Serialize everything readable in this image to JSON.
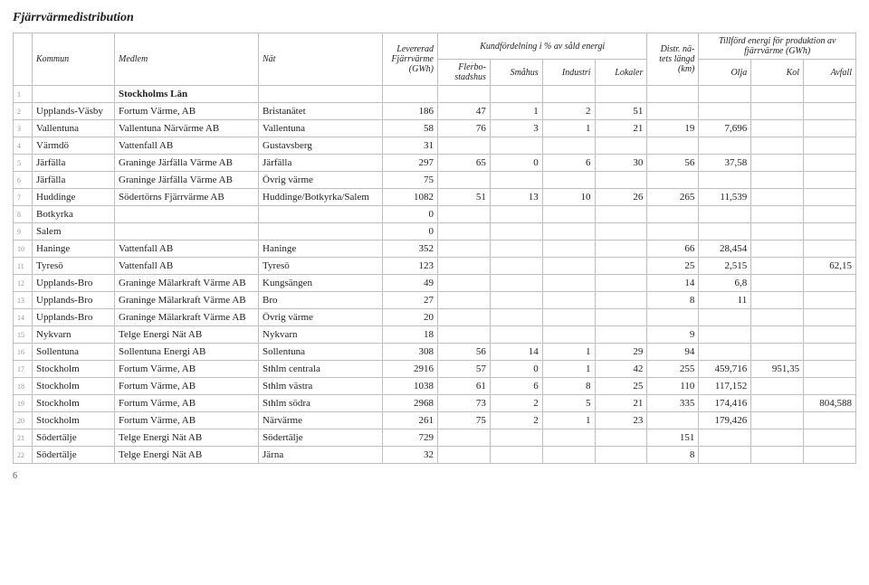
{
  "title": "Fjärrvärmedistribution",
  "group1": "Kundfördelning i % av såld energi",
  "group2": "Tillförd energi för produktion av fjärrvärme (GWh)",
  "cols": {
    "kommun": "Kommun",
    "medlem": "Medlem",
    "nat": "Nät",
    "lev": "Levererad Fjärrvärme (GWh)",
    "flerbo": "Flerbo-stadshus",
    "smahus": "Småhus",
    "industri": "Industri",
    "lokaler": "Lokaler",
    "distr": "Distr. nä-tets längd (km)",
    "olja": "Olja",
    "kol": "Kol",
    "avfall": "Avfall"
  },
  "regionRow": {
    "n": "1",
    "region": "Stockholms Län"
  },
  "rows": [
    {
      "n": "2",
      "kommun": "Upplands-Väsby",
      "medlem": "Fortum Värme, AB",
      "nat": "Bristanätet",
      "lev": "186",
      "flb": "47",
      "sma": "1",
      "ind": "2",
      "lok": "51",
      "dis": "",
      "olj": "",
      "kol": "",
      "avf": ""
    },
    {
      "n": "3",
      "kommun": "Vallentuna",
      "medlem": "Vallentuna Närvärme AB",
      "nat": "Vallentuna",
      "lev": "58",
      "flb": "76",
      "sma": "3",
      "ind": "1",
      "lok": "21",
      "dis": "19",
      "olj": "7,696",
      "kol": "",
      "avf": ""
    },
    {
      "n": "4",
      "kommun": "Värmdö",
      "medlem": "Vattenfall AB",
      "nat": "Gustavsberg",
      "lev": "31",
      "flb": "",
      "sma": "",
      "ind": "",
      "lok": "",
      "dis": "",
      "olj": "",
      "kol": "",
      "avf": ""
    },
    {
      "n": "5",
      "kommun": "Järfälla",
      "medlem": "Graninge Järfälla Värme AB",
      "nat": "Järfälla",
      "lev": "297",
      "flb": "65",
      "sma": "0",
      "ind": "6",
      "lok": "30",
      "dis": "56",
      "olj": "37,58",
      "kol": "",
      "avf": ""
    },
    {
      "n": "6",
      "kommun": "Järfälla",
      "medlem": "Graninge Järfälla Värme AB",
      "nat": "Övrig värme",
      "lev": "75",
      "flb": "",
      "sma": "",
      "ind": "",
      "lok": "",
      "dis": "",
      "olj": "",
      "kol": "",
      "avf": ""
    },
    {
      "n": "7",
      "kommun": "Huddinge",
      "medlem": "Södertörns Fjärrvärme AB",
      "nat": "Huddinge/Botkyrka/Salem",
      "lev": "1082",
      "flb": "51",
      "sma": "13",
      "ind": "10",
      "lok": "26",
      "dis": "265",
      "olj": "11,539",
      "kol": "",
      "avf": ""
    },
    {
      "n": "8",
      "kommun": "Botkyrka",
      "medlem": "",
      "nat": "",
      "lev": "0",
      "flb": "",
      "sma": "",
      "ind": "",
      "lok": "",
      "dis": "",
      "olj": "",
      "kol": "",
      "avf": ""
    },
    {
      "n": "9",
      "kommun": "Salem",
      "medlem": "",
      "nat": "",
      "lev": "0",
      "flb": "",
      "sma": "",
      "ind": "",
      "lok": "",
      "dis": "",
      "olj": "",
      "kol": "",
      "avf": ""
    },
    {
      "n": "10",
      "kommun": "Haninge",
      "medlem": "Vattenfall AB",
      "nat": "Haninge",
      "lev": "352",
      "flb": "",
      "sma": "",
      "ind": "",
      "lok": "",
      "dis": "66",
      "olj": "28,454",
      "kol": "",
      "avf": ""
    },
    {
      "n": "11",
      "kommun": "Tyresö",
      "medlem": "Vattenfall AB",
      "nat": "Tyresö",
      "lev": "123",
      "flb": "",
      "sma": "",
      "ind": "",
      "lok": "",
      "dis": "25",
      "olj": "2,515",
      "kol": "",
      "avf": "62,15"
    },
    {
      "n": "12",
      "kommun": "Upplands-Bro",
      "medlem": "Graninge Mälarkraft Värme AB",
      "nat": "Kungsängen",
      "lev": "49",
      "flb": "",
      "sma": "",
      "ind": "",
      "lok": "",
      "dis": "14",
      "olj": "6,8",
      "kol": "",
      "avf": ""
    },
    {
      "n": "13",
      "kommun": "Upplands-Bro",
      "medlem": "Graninge Mälarkraft Värme AB",
      "nat": "Bro",
      "lev": "27",
      "flb": "",
      "sma": "",
      "ind": "",
      "lok": "",
      "dis": "8",
      "olj": "11",
      "kol": "",
      "avf": ""
    },
    {
      "n": "14",
      "kommun": "Upplands-Bro",
      "medlem": "Graninge Mälarkraft Värme AB",
      "nat": "Övrig värme",
      "lev": "20",
      "flb": "",
      "sma": "",
      "ind": "",
      "lok": "",
      "dis": "",
      "olj": "",
      "kol": "",
      "avf": ""
    },
    {
      "n": "15",
      "kommun": "Nykvarn",
      "medlem": "Telge Energi Nät AB",
      "nat": "Nykvarn",
      "lev": "18",
      "flb": "",
      "sma": "",
      "ind": "",
      "lok": "",
      "dis": "9",
      "olj": "",
      "kol": "",
      "avf": ""
    },
    {
      "n": "16",
      "kommun": "Sollentuna",
      "medlem": "Sollentuna Energi AB",
      "nat": "Sollentuna",
      "lev": "308",
      "flb": "56",
      "sma": "14",
      "ind": "1",
      "lok": "29",
      "dis": "94",
      "olj": "",
      "kol": "",
      "avf": ""
    },
    {
      "n": "17",
      "kommun": "Stockholm",
      "medlem": "Fortum Värme, AB",
      "nat": "Sthlm centrala",
      "lev": "2916",
      "flb": "57",
      "sma": "0",
      "ind": "1",
      "lok": "42",
      "dis": "255",
      "olj": "459,716",
      "kol": "951,35",
      "avf": ""
    },
    {
      "n": "18",
      "kommun": "Stockholm",
      "medlem": "Fortum Värme, AB",
      "nat": "Sthlm västra",
      "lev": "1038",
      "flb": "61",
      "sma": "6",
      "ind": "8",
      "lok": "25",
      "dis": "110",
      "olj": "117,152",
      "kol": "",
      "avf": ""
    },
    {
      "n": "19",
      "kommun": "Stockholm",
      "medlem": "Fortum Värme, AB",
      "nat": "Sthlm södra",
      "lev": "2968",
      "flb": "73",
      "sma": "2",
      "ind": "5",
      "lok": "21",
      "dis": "335",
      "olj": "174,416",
      "kol": "",
      "avf": "804,588"
    },
    {
      "n": "20",
      "kommun": "Stockholm",
      "medlem": "Fortum Värme, AB",
      "nat": "Närvärme",
      "lev": "261",
      "flb": "75",
      "sma": "2",
      "ind": "1",
      "lok": "23",
      "dis": "",
      "olj": "179,426",
      "kol": "",
      "avf": ""
    },
    {
      "n": "21",
      "kommun": "Södertälje",
      "medlem": "Telge Energi Nät AB",
      "nat": "Södertälje",
      "lev": "729",
      "flb": "",
      "sma": "",
      "ind": "",
      "lok": "",
      "dis": "151",
      "olj": "",
      "kol": "",
      "avf": ""
    },
    {
      "n": "22",
      "kommun": "Södertälje",
      "medlem": "Telge Energi Nät AB",
      "nat": "Järna",
      "lev": "32",
      "flb": "",
      "sma": "",
      "ind": "",
      "lok": "",
      "dis": "8",
      "olj": "",
      "kol": "",
      "avf": ""
    }
  ],
  "pageNum": "6"
}
